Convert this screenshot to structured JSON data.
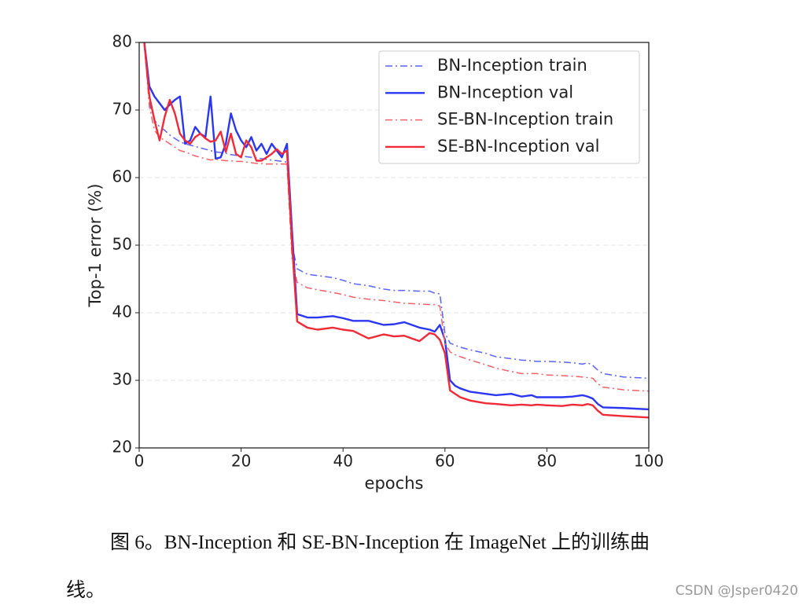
{
  "chart_data": {
    "type": "line",
    "x_label": "epochs",
    "y_label": "Top-1 error (%)",
    "x": [
      1,
      2,
      3,
      4,
      5,
      6,
      7,
      8,
      9,
      10,
      11,
      12,
      13,
      14,
      15,
      16,
      17,
      18,
      19,
      20,
      21,
      22,
      23,
      24,
      25,
      26,
      27,
      28,
      29,
      30,
      31,
      33,
      35,
      38,
      40,
      42,
      45,
      48,
      50,
      52,
      55,
      57,
      58,
      59,
      60,
      61,
      62,
      63,
      65,
      68,
      70,
      73,
      75,
      77,
      78,
      80,
      83,
      85,
      87,
      88,
      89,
      90,
      91,
      95,
      100
    ],
    "series": [
      {
        "name": "BN-Inception train",
        "color": "#5a63f5",
        "linestyle": "dashdot",
        "values": [
          80,
          71,
          68.5,
          67.5,
          67,
          66.3,
          65.8,
          65.3,
          65,
          64.8,
          64.6,
          64.4,
          64.2,
          64,
          63.8,
          63.7,
          63.6,
          63.4,
          63.3,
          63.2,
          63.1,
          63,
          62.9,
          62.8,
          62.7,
          62.6,
          62.5,
          62.4,
          62.3,
          50,
          46.5,
          45.7,
          45.5,
          45.2,
          44.8,
          44.3,
          44,
          43.5,
          43.3,
          43.3,
          43.2,
          43.2,
          42.9,
          42.8,
          37,
          35.5,
          35.2,
          34.9,
          34.5,
          34,
          33.5,
          33.2,
          33,
          32.9,
          32.8,
          32.8,
          32.7,
          32.6,
          32.4,
          32.6,
          32.2,
          31.5,
          31,
          30.5,
          30.3
        ]
      },
      {
        "name": "BN-Inception val",
        "color": "#2a36f2",
        "linestyle": "solid",
        "values": [
          80,
          73.5,
          72,
          71,
          70,
          70.8,
          71.5,
          72,
          65,
          65.5,
          67.5,
          66.5,
          66,
          72,
          62.8,
          63,
          65,
          69.5,
          67,
          65.5,
          64.5,
          66,
          64,
          65,
          63.5,
          65,
          64,
          63,
          65,
          52,
          39.8,
          39.3,
          39.3,
          39.5,
          39.2,
          38.8,
          38.8,
          38.2,
          38.3,
          38.6,
          37.8,
          37.5,
          37.2,
          38.2,
          36,
          30,
          29.2,
          28.8,
          28.3,
          28,
          27.8,
          28,
          27.6,
          27.8,
          27.5,
          27.5,
          27.5,
          27.6,
          27.8,
          27.6,
          27.3,
          26.5,
          26,
          25.9,
          25.7
        ]
      },
      {
        "name": "SE-BN-Inception train",
        "color": "#f26068",
        "linestyle": "dashdot",
        "values": [
          80,
          70.5,
          67,
          66,
          65.5,
          65,
          64.5,
          64,
          63.8,
          63.5,
          63.2,
          63,
          62.8,
          62.6,
          62.7,
          62.6,
          62.5,
          62.5,
          62.4,
          62.4,
          62.3,
          62.2,
          62.1,
          62.1,
          62,
          62,
          62,
          62,
          62,
          48,
          44.5,
          43.7,
          43.4,
          43,
          42.7,
          42.3,
          42,
          41.8,
          41.6,
          41.4,
          41.3,
          41.2,
          41.2,
          41,
          35.5,
          34.2,
          33.8,
          33.5,
          33,
          32.3,
          31.8,
          31.3,
          31,
          31,
          31,
          30.8,
          30.7,
          30.6,
          30.5,
          30.4,
          30.3,
          29.5,
          29,
          28.6,
          28.4
        ]
      },
      {
        "name": "SE-BN-Inception val",
        "color": "#f02a36",
        "linestyle": "solid",
        "values": [
          80,
          72,
          68.5,
          65.5,
          69,
          71.5,
          69.5,
          66.5,
          65.5,
          65,
          66,
          66.5,
          65.8,
          65.3,
          65.5,
          66.8,
          63.8,
          66.5,
          63.5,
          63,
          65.5,
          64.5,
          62.5,
          62.5,
          63,
          63.5,
          64.2,
          63.5,
          64,
          50,
          38.7,
          37.8,
          37.5,
          37.8,
          37.5,
          37.3,
          36.2,
          36.8,
          36.5,
          36.6,
          35.8,
          37,
          36.8,
          36,
          34,
          28.5,
          28,
          27.5,
          27,
          26.6,
          26.5,
          26.3,
          26.4,
          26.3,
          26.4,
          26.3,
          26.2,
          26.4,
          26.3,
          26.5,
          26.3,
          25.5,
          24.9,
          24.7,
          24.5
        ]
      }
    ],
    "xlim": [
      0,
      100
    ],
    "xticks": [
      0,
      20,
      40,
      60,
      80,
      100
    ],
    "ylim": [
      20,
      80
    ],
    "yticks": [
      20,
      30,
      40,
      50,
      60,
      70,
      80
    ],
    "grid": true,
    "legend": "upper right"
  },
  "caption": [
    "图 6。BN-Inception 和 SE-BN-Inception 在 ImageNet 上的训练曲",
    "线。"
  ],
  "watermark": "CSDN @Jsper0420"
}
